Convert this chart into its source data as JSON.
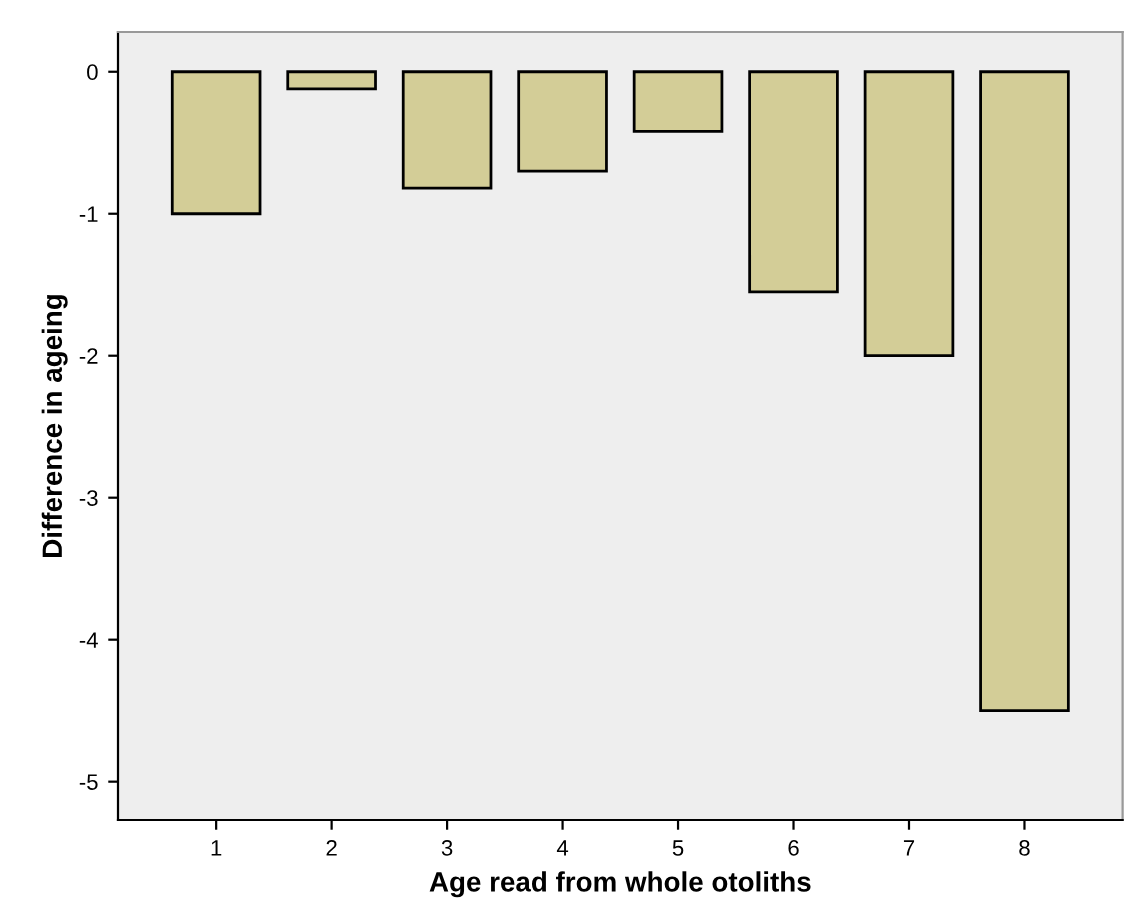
{
  "chart_data": {
    "type": "bar",
    "xlabel": "Age read from whole otoliths",
    "ylabel": "Difference in ageing",
    "categories": [
      "1",
      "2",
      "3",
      "4",
      "5",
      "6",
      "7",
      "8"
    ],
    "values": [
      -1.0,
      -0.12,
      -0.82,
      -0.7,
      -0.42,
      -1.55,
      -2.0,
      -4.5
    ],
    "color": "#d3cd97",
    "ylim": [
      -5.27,
      0.28
    ],
    "yticks": [
      0,
      -1,
      -2,
      -3,
      -4,
      -5
    ],
    "grid": false
  }
}
